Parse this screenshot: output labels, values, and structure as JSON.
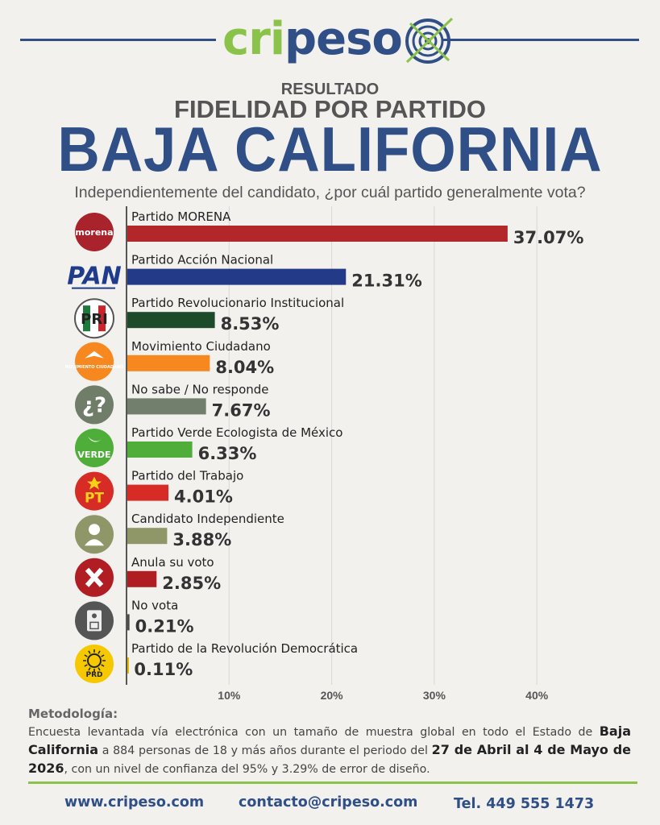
{
  "brand": {
    "logo_text_green": "cri",
    "logo_text_blue": "peso"
  },
  "header": {
    "resultado": "RESULTADO",
    "subtitle": "FIDELIDAD POR PARTIDO",
    "title": "BAJA CALIFORNIA",
    "question": "Independientemente del candidato, ¿por cuál partido generalmente vota?"
  },
  "chart_data": {
    "type": "bar",
    "orientation": "horizontal",
    "categories": [
      "Partido MORENA",
      "Partido Acción Nacional",
      "Partido Revolucionario Institucional",
      "Movimiento Ciudadano",
      "No sabe / No responde",
      "Partido Verde Ecologista de México",
      "Partido del Trabajo",
      "Candidato Independiente",
      "Anula su voto",
      "No vota",
      "Partido de la Revolución Democrática"
    ],
    "values": [
      37.07,
      21.31,
      8.53,
      8.04,
      7.67,
      6.33,
      4.01,
      3.88,
      2.85,
      0.21,
      0.11
    ],
    "value_labels": [
      "37.07%",
      "21.31%",
      "8.53%",
      "8.04%",
      "7.67%",
      "6.33%",
      "4.01%",
      "3.88%",
      "2.85%",
      "0.21%",
      "0.11%"
    ],
    "colors": [
      "#b3262a",
      "#233a88",
      "#1d4a2b",
      "#f7871f",
      "#727f6c",
      "#4fae3a",
      "#d72c26",
      "#8f9668",
      "#b01e24",
      "#4a4a4a",
      "#e6b800"
    ],
    "icons": [
      "morena-logo-icon",
      "pan-logo-icon",
      "pri-logo-icon",
      "movimiento-ciudadano-logo-icon",
      "question-icon",
      "verde-logo-icon",
      "pt-logo-icon",
      "person-icon",
      "x-icon",
      "ballot-icon",
      "prd-logo-icon"
    ],
    "icon_texts": {
      "morena": "morena",
      "pan": "PAN",
      "pri": "PRI",
      "mc": "MOVIMIENTO CIUDADANO",
      "verde": "VERDE",
      "pt": "PT",
      "prd": "PRD",
      "question": "¿?"
    },
    "xlim": [
      0,
      40
    ],
    "xticks": [
      10,
      20,
      30,
      40
    ],
    "xtick_labels": [
      "10%",
      "20%",
      "30%",
      "40%"
    ],
    "grid": true
  },
  "methodology": {
    "title": "Metodología:",
    "p1": "Encuesta levantada vía electrónica con un tamaño de muestra global en todo el Estado de",
    "p2": "Baja California",
    "p3": " a 884 personas de 18 y más años durante el periodo del ",
    "p4": "27 de Abril al 4 de Mayo de 2026",
    "p5": ", con un nivel de confianza del 95% y 3.29% de error de diseño."
  },
  "footer": {
    "web": "www.cripeso.com",
    "email": "contacto@cripeso.com",
    "phone": "Tel. 449 555 1473"
  }
}
